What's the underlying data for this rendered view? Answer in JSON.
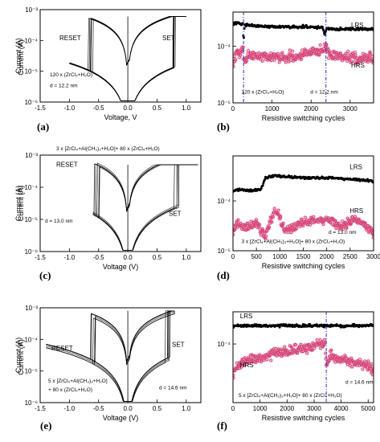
{
  "chart_data": [
    {
      "panel": "(a)",
      "type": "line",
      "ylog": true,
      "xlabel": "Voltage, V",
      "ylabel": "Current (A)",
      "xlim": [
        -1.5,
        1.25
      ],
      "ylim": [
        1e-06,
        0.001
      ],
      "xticks": [
        -1.5,
        -1.0,
        -0.5,
        0.0,
        0.5,
        1.0
      ],
      "xtick_labels": [
        "-1.5",
        "-1.0",
        "-0.5",
        "0.0",
        "0.5",
        "1.0"
      ],
      "yticks": [
        1e-06,
        1e-05,
        0.0001,
        0.001
      ],
      "ytick_labels": [
        "10⁻⁶",
        "10⁻⁵",
        "10⁻⁴",
        "10⁻³"
      ],
      "annotations": [
        "RESET",
        "SET",
        "120 x (ZrCl₄+H₂O)",
        "d = 12.2 nm"
      ],
      "sweep": {
        "compliance_A": 0.0006,
        "vmin": -1.0,
        "vmax": 1.0,
        "vset": 0.8,
        "vreset": -0.62,
        "lrs_slope_A_per_V": 0.00075,
        "hrs_A_at_1V": 1.5e-05,
        "cycles": 6
      }
    },
    {
      "panel": "(b)",
      "type": "scatter",
      "ylog": true,
      "xlabel": "Resistive switching cycles",
      "ylabel": "Current (A)",
      "xlim": [
        0,
        3600
      ],
      "ylim": [
        1e-05,
        0.0004
      ],
      "xticks": [
        0,
        1000,
        2000,
        3000
      ],
      "xtick_labels": [
        "0",
        "1000",
        "2000",
        "3000"
      ],
      "yticks": [
        1e-05,
        0.0001
      ],
      "ytick_labels": [
        "10⁻⁵",
        "10⁻⁴"
      ],
      "annotations": [
        "LRS",
        "HRS",
        "120 x (ZrCl₄+H₂O)",
        "d = 12.2 nm"
      ],
      "vlines": [
        270,
        2380
      ],
      "series": [
        {
          "name": "LRS",
          "color": "#000000",
          "x": [
            0,
            250,
            270,
            300,
            500,
            1000,
            1500,
            2000,
            2300,
            2350,
            2400,
            2500,
            3000,
            3500
          ],
          "y": [
            0.00025,
            0.00025,
            0.00012,
            0.00024,
            0.00023,
            0.00022,
            0.00022,
            0.00022,
            0.00021,
            0.00016,
            0.00021,
            0.0002,
            0.0002,
            0.0002
          ]
        },
        {
          "name": "HRS",
          "color": "#d22020",
          "x": [
            0,
            100,
            200,
            260,
            290,
            400,
            800,
            1200,
            1600,
            2000,
            2300,
            2380,
            2450,
            2800,
            3200,
            3500
          ],
          "y": [
            5e-05,
            7e-05,
            8e-05,
            9e-05,
            5e-05,
            7e-05,
            6.5e-05,
            6.5e-05,
            6.5e-05,
            8e-05,
            8.5e-05,
            0.0001,
            7e-05,
            6.5e-05,
            6e-05,
            6e-05
          ]
        }
      ]
    },
    {
      "panel": "(c)",
      "type": "line",
      "ylog": true,
      "xlabel": "Voltage (V)",
      "ylabel": "Current (A)",
      "xlim": [
        -1.5,
        1.25
      ],
      "ylim": [
        1e-06,
        0.001
      ],
      "xticks": [
        -1.5,
        -1.0,
        -0.5,
        0.0,
        0.5,
        1.0
      ],
      "xtick_labels": [
        "-1.5",
        "-1.0",
        "-0.5",
        "0.0",
        "0.5",
        "1.0"
      ],
      "yticks": [
        1e-06,
        1e-05,
        0.0001,
        0.001
      ],
      "ytick_labels": [
        "10⁻⁶",
        "10⁻⁵",
        "10⁻⁴",
        "10⁻³"
      ],
      "annotations": [
        "RESET",
        "SET",
        "3 x [ZrCl₄+Al(CH₃)₃+H₂O]+ 80 x (ZrCl₄+H₂O)",
        "d = 13.0 nm"
      ],
      "sweep": {
        "compliance_A": 0.0005,
        "vmin": -0.6,
        "vmax": 1.2,
        "vset": 0.85,
        "vreset": -0.5,
        "lrs_slope_A_per_V": 0.001,
        "hrs_A_at_1V": 3e-05,
        "cycles": 6
      }
    },
    {
      "panel": "(d)",
      "type": "scatter",
      "ylog": true,
      "xlabel": "Resistive switching cycles",
      "ylabel": "Current (A)",
      "xlim": [
        0,
        3000
      ],
      "ylim": [
        1e-05,
        0.0008
      ],
      "xticks": [
        0,
        500,
        1000,
        1500,
        2000,
        2500,
        3000
      ],
      "xtick_labels": [
        "0",
        "500",
        "1000",
        "1500",
        "2000",
        "2500",
        "3000"
      ],
      "yticks": [
        1e-05,
        0.0001
      ],
      "ytick_labels": [
        "10⁻⁵",
        "10⁻⁴"
      ],
      "annotations": [
        "LRS",
        "HRS",
        "d = 13.0 nm",
        "3 x [ZrCl₄+Al(CH₃)₃+H₂O]+ 80 x (ZrCl₄+H₂O)"
      ],
      "vlines": [],
      "series": [
        {
          "name": "LRS",
          "color": "#000000",
          "x": [
            0,
            200,
            400,
            600,
            700,
            900,
            1200,
            1600,
            2000,
            2400,
            2800,
            3000
          ],
          "y": [
            0.00016,
            0.00017,
            0.00016,
            0.00017,
            0.0003,
            0.00032,
            0.0003,
            0.00029,
            0.00029,
            0.00028,
            0.00026,
            0.00025
          ]
        },
        {
          "name": "HRS",
          "color": "#d22020",
          "x": [
            0,
            100,
            300,
            500,
            700,
            800,
            900,
            1000,
            1100,
            1300,
            1500,
            1800,
            2000,
            2300,
            2600,
            2900,
            3000
          ],
          "y": [
            2.5e-05,
            3.5e-05,
            3e-05,
            3.5e-05,
            2e-05,
            4e-05,
            6.5e-05,
            4.5e-05,
            2.5e-05,
            3e-05,
            3.8e-05,
            4e-05,
            4.5e-05,
            3e-05,
            4.5e-05,
            3e-05,
            2.2e-05
          ]
        }
      ]
    },
    {
      "panel": "(e)",
      "type": "line",
      "ylog": true,
      "xlabel": "Voltage (V)",
      "ylabel": "Current (A)",
      "xlim": [
        -1.5,
        1.25
      ],
      "ylim": [
        1e-06,
        0.001
      ],
      "xticks": [
        -1.5,
        -1.0,
        -0.5,
        0.0,
        0.5,
        1.0
      ],
      "xtick_labels": [
        "-1.5",
        "-1.0",
        "-0.5",
        "0.0",
        "0.5",
        "1.0"
      ],
      "yticks": [
        1e-06,
        1e-05,
        0.0001,
        0.001
      ],
      "ytick_labels": [
        "10⁻⁶",
        "10⁻⁵",
        "10⁻⁴",
        "10⁻³"
      ],
      "annotations": [
        "RESET",
        "SET",
        "5 x [ZrCl₄+Al(CH₃)₃+H₂O]",
        "+ 80 x (ZrCl₄+H₂O)",
        "d = 14.6 nm"
      ],
      "sweep": {
        "compliance_A": 0.0008,
        "vmin": -1.4,
        "vmax": 0.8,
        "vset": 0.7,
        "vreset": -0.6,
        "lrs_slope_A_per_V": 0.001,
        "hrs_A_at_1V": 4e-05,
        "cycles": 6
      }
    },
    {
      "panel": "(f)",
      "type": "scatter",
      "ylog": true,
      "xlabel": "Resistive switching cycles",
      "ylabel": "Current (A)",
      "xlim": [
        0,
        5200
      ],
      "ylim": [
        8e-06,
        0.0004
      ],
      "xticks": [
        0,
        1000,
        2000,
        3000,
        4000,
        5000
      ],
      "xtick_labels": [
        "0",
        "1000",
        "2000",
        "3000",
        "4000",
        "5000"
      ],
      "yticks": [
        0.0001
      ],
      "ytick_labels": [
        "10⁻⁴"
      ],
      "annotations": [
        "LRS",
        "HRS",
        "d = 14.6 nm",
        "5 x [ZrCl₄+Al(CH₃)₃+H₂O]+ 80 x (ZrCl₄+H₂O)"
      ],
      "vlines": [
        3450
      ],
      "series": [
        {
          "name": "LRS",
          "color": "#000000",
          "x": [
            0,
            1000,
            2000,
            3000,
            4000,
            5000,
            5200
          ],
          "y": [
            0.00022,
            0.00022,
            0.00022,
            0.00022,
            0.00022,
            0.00022,
            0.00022
          ]
        },
        {
          "name": "HRS",
          "color": "#d22020",
          "x": [
            0,
            200,
            500,
            1000,
            1500,
            2000,
            2500,
            3000,
            3400,
            3450,
            3600,
            4000,
            4500,
            5000,
            5200
          ],
          "y": [
            3e-05,
            4e-05,
            5e-05,
            5.5e-05,
            6.5e-05,
            7.5e-05,
            8e-05,
            9e-05,
            0.00012,
            4e-05,
            6e-05,
            5e-05,
            4.5e-05,
            4e-05,
            3e-05
          ]
        }
      ]
    }
  ],
  "colors": {
    "axis": "#000000",
    "lrs": "#000000",
    "hrs": "#d22020",
    "hrs_band": "#e080e0",
    "vline": "#2030c0"
  }
}
